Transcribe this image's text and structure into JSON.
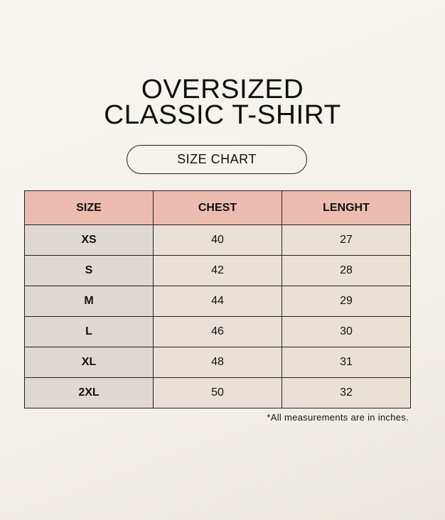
{
  "title": {
    "line1": "OVERSIZED",
    "line2": "CLASSIC T-SHIRT"
  },
  "subtitle": "SIZE CHART",
  "table": {
    "headers": [
      "SIZE",
      "CHEST",
      "LENGHT"
    ],
    "rows": [
      [
        "XS",
        "40",
        "27"
      ],
      [
        "S",
        "42",
        "28"
      ],
      [
        "M",
        "44",
        "29"
      ],
      [
        "L",
        "46",
        "30"
      ],
      [
        "XL",
        "48",
        "31"
      ],
      [
        "2XL",
        "50",
        "32"
      ]
    ]
  },
  "note": "*All measurements are in inches.",
  "colors": {
    "header_accent": "#ecbcae",
    "size_column": "#dfd8d3",
    "cells": "#e9e1d7"
  }
}
